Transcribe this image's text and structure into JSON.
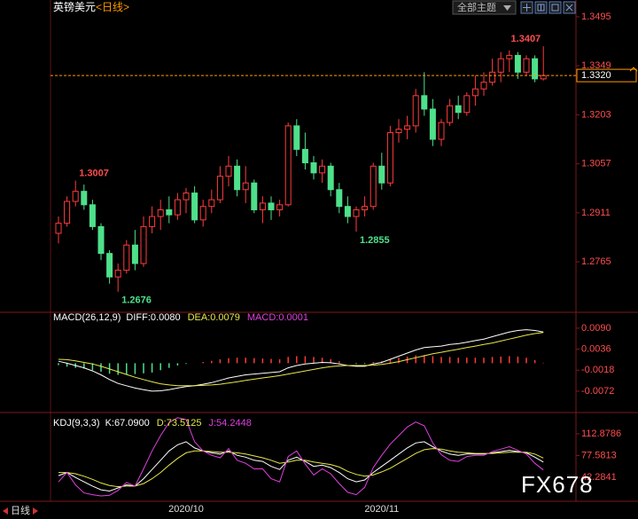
{
  "toolbar": {
    "theme_select": "全部主题"
  },
  "footer": {
    "period": "日线"
  },
  "watermark": "FX678",
  "chart_data": [
    {
      "type": "candlestick",
      "title": "英镑美元",
      "subtitle": "<日线>",
      "categories": [
        null,
        null,
        null,
        null,
        null,
        null,
        null,
        null,
        null,
        null,
        null,
        null,
        null,
        null,
        null,
        "2020/10",
        null,
        null,
        null,
        null,
        null,
        null,
        null,
        null,
        null,
        null,
        null,
        null,
        null,
        null,
        null,
        null,
        null,
        null,
        null,
        null,
        null,
        null,
        "2020/11",
        null,
        null,
        null,
        null,
        null,
        null,
        null,
        null,
        null,
        null,
        null,
        null,
        null,
        null,
        null,
        null,
        null,
        null,
        null
      ],
      "open": [
        1.285,
        1.288,
        1.2945,
        1.2975,
        1.2935,
        1.287,
        1.279,
        1.272,
        1.274,
        1.2815,
        1.276,
        1.287,
        1.29,
        1.292,
        1.2905,
        1.295,
        1.297,
        1.289,
        1.293,
        1.295,
        1.302,
        1.305,
        1.298,
        1.3,
        1.292,
        1.294,
        1.292,
        1.2935,
        1.317,
        1.31,
        1.306,
        1.303,
        1.305,
        1.298,
        1.293,
        1.29,
        1.292,
        1.293,
        1.305,
        1.3,
        1.315,
        1.316,
        1.317,
        1.326,
        1.322,
        1.313,
        1.318,
        1.323,
        1.321,
        1.326,
        1.328,
        1.33,
        1.333,
        1.337,
        1.338,
        1.333,
        1.337,
        1.331
      ],
      "high": [
        1.29,
        1.296,
        1.3007,
        1.2995,
        1.295,
        1.288,
        1.28,
        1.276,
        1.283,
        1.286,
        1.29,
        1.293,
        1.295,
        1.296,
        1.297,
        1.2985,
        1.299,
        1.295,
        1.298,
        1.305,
        1.308,
        1.307,
        1.305,
        1.301,
        1.296,
        1.296,
        1.295,
        1.318,
        1.319,
        1.315,
        1.308,
        1.307,
        1.306,
        1.3,
        1.296,
        1.293,
        1.296,
        1.306,
        1.309,
        1.317,
        1.319,
        1.32,
        1.328,
        1.333,
        1.325,
        1.319,
        1.325,
        1.326,
        1.327,
        1.332,
        1.333,
        1.337,
        1.339,
        1.3395,
        1.339,
        1.338,
        1.338,
        1.3407
      ],
      "low": [
        1.282,
        1.287,
        1.293,
        1.292,
        1.286,
        1.277,
        1.27,
        1.2676,
        1.273,
        1.274,
        1.275,
        1.285,
        1.286,
        1.288,
        1.289,
        1.291,
        1.288,
        1.287,
        1.291,
        1.294,
        1.299,
        1.296,
        1.294,
        1.291,
        1.288,
        1.289,
        1.29,
        1.293,
        1.308,
        1.304,
        1.301,
        1.3,
        1.296,
        1.291,
        1.288,
        1.2855,
        1.29,
        1.292,
        1.298,
        1.299,
        1.312,
        1.313,
        1.315,
        1.32,
        1.311,
        1.311,
        1.317,
        1.319,
        1.32,
        1.323,
        1.326,
        1.329,
        1.33,
        1.333,
        1.331,
        1.332,
        1.33,
        1.3305
      ],
      "close": [
        1.288,
        1.2945,
        1.2975,
        1.2935,
        1.287,
        1.279,
        1.272,
        1.274,
        1.2815,
        1.276,
        1.287,
        1.29,
        1.292,
        1.2905,
        1.295,
        1.297,
        1.289,
        1.293,
        1.295,
        1.302,
        1.305,
        1.298,
        1.3,
        1.292,
        1.294,
        1.292,
        1.2935,
        1.317,
        1.31,
        1.306,
        1.303,
        1.305,
        1.298,
        1.293,
        1.29,
        1.292,
        1.293,
        1.305,
        1.3,
        1.315,
        1.316,
        1.317,
        1.326,
        1.322,
        1.313,
        1.318,
        1.323,
        1.321,
        1.326,
        1.328,
        1.33,
        1.333,
        1.337,
        1.338,
        1.333,
        1.337,
        1.331,
        1.332
      ],
      "up_color": "#ff3b3b",
      "down_color": "#4ee08a",
      "ylim": [
        1.262,
        1.3537
      ],
      "yticks": [
        1.2765,
        1.2911,
        1.3057,
        1.3203,
        1.3349,
        1.3495
      ],
      "last_price": {
        "value": 1.332,
        "label": "1.3320"
      }
    },
    {
      "type": "macd",
      "title": "MACD(26,12,9)",
      "up_color": "#ff3b3b",
      "down_color": "#4ee08a",
      "series": [
        {
          "name": "DIFF:0.0080",
          "color": "#ffffff",
          "type": "line",
          "values": [
            0.0005,
            0.0,
            -0.0006,
            -0.0012,
            -0.002,
            -0.003,
            -0.0042,
            -0.0052,
            -0.0058,
            -0.0064,
            -0.0068,
            -0.0072,
            -0.0071,
            -0.0068,
            -0.0064,
            -0.006,
            -0.0058,
            -0.0054,
            -0.005,
            -0.0044,
            -0.0038,
            -0.0034,
            -0.003,
            -0.0028,
            -0.0026,
            -0.0024,
            -0.0022,
            -0.0012,
            -0.0006,
            -0.0002,
            0.0,
            0.0002,
            0.0001,
            -0.0002,
            -0.0006,
            -0.0008,
            -0.0008,
            -0.0002,
            0.0002,
            0.001,
            0.0018,
            0.0026,
            0.0034,
            0.004,
            0.0042,
            0.0044,
            0.0048,
            0.005,
            0.0054,
            0.0058,
            0.0062,
            0.0068,
            0.0074,
            0.008,
            0.0084,
            0.0086,
            0.0084,
            0.008
          ]
        },
        {
          "name": "DEA:0.0079",
          "color": "#e8e84a",
          "type": "line",
          "values": [
            0.001,
            0.0009,
            0.0006,
            0.0002,
            -0.0002,
            -0.0008,
            -0.0015,
            -0.0022,
            -0.0029,
            -0.0036,
            -0.0042,
            -0.0048,
            -0.0053,
            -0.0056,
            -0.0058,
            -0.0058,
            -0.0058,
            -0.0057,
            -0.0056,
            -0.0054,
            -0.0051,
            -0.0048,
            -0.0044,
            -0.0041,
            -0.0038,
            -0.0035,
            -0.0032,
            -0.0028,
            -0.0024,
            -0.002,
            -0.0016,
            -0.0012,
            -0.0009,
            -0.0007,
            -0.0006,
            -0.0006,
            -0.0006,
            -0.0005,
            -0.0003,
            0.0,
            0.0004,
            0.0009,
            0.0014,
            0.0019,
            0.0024,
            0.0028,
            0.0032,
            0.0036,
            0.004,
            0.0044,
            0.0048,
            0.0052,
            0.0057,
            0.0062,
            0.0067,
            0.0072,
            0.0076,
            0.0079
          ]
        },
        {
          "name": "MACD:0.0001",
          "color": "#e040e0",
          "type": "bar",
          "values": [
            -0.0005,
            -0.0009,
            -0.0012,
            -0.0014,
            -0.0018,
            -0.0022,
            -0.0027,
            -0.003,
            -0.0029,
            -0.0028,
            -0.0026,
            -0.0024,
            -0.0018,
            -0.0012,
            -0.0006,
            -0.0002,
            0.0,
            0.0003,
            0.0006,
            0.001,
            0.0013,
            0.0014,
            0.0014,
            0.0013,
            0.0012,
            0.0011,
            0.001,
            0.0016,
            0.0018,
            0.0018,
            0.0016,
            0.0014,
            0.001,
            0.0005,
            0.0,
            -0.0002,
            -0.0002,
            0.0003,
            0.0005,
            0.001,
            0.0014,
            0.0017,
            0.002,
            0.0021,
            0.0018,
            0.0016,
            0.0016,
            0.0014,
            0.0014,
            0.0014,
            0.0014,
            0.0016,
            0.0017,
            0.0018,
            0.0017,
            0.0014,
            0.0008,
            0.0001
          ]
        }
      ],
      "ylim": [
        -0.012,
        0.0108
      ],
      "yticks": [
        -0.0072,
        -0.0018,
        0.0036,
        {
          "value": 0.009,
          "label": "0.0090"
        }
      ]
    },
    {
      "type": "kdj",
      "title": "KDJ(9,3,3)",
      "series": [
        {
          "name": "K:67.0900",
          "color": "#ffffff",
          "type": "line",
          "values": [
            45,
            50,
            42,
            35,
            28,
            22,
            20,
            25,
            30,
            28,
            40,
            55,
            70,
            85,
            95,
            100,
            90,
            85,
            82,
            80,
            85,
            78,
            75,
            70,
            68,
            60,
            55,
            70,
            75,
            68,
            60,
            62,
            58,
            50,
            40,
            35,
            38,
            50,
            60,
            70,
            80,
            90,
            98,
            100,
            92,
            85,
            80,
            78,
            80,
            80,
            80,
            82,
            84,
            86,
            84,
            82,
            75,
            67.09
          ]
        },
        {
          "name": "D:73.5125",
          "color": "#e8e84a",
          "type": "line",
          "values": [
            50,
            50,
            48,
            44,
            39,
            33,
            29,
            27,
            28,
            28,
            32,
            40,
            50,
            62,
            73,
            82,
            85,
            85,
            84,
            83,
            83,
            82,
            80,
            77,
            74,
            70,
            65,
            67,
            70,
            70,
            67,
            65,
            63,
            59,
            52,
            47,
            44,
            46,
            51,
            57,
            65,
            73,
            81,
            87,
            89,
            88,
            85,
            83,
            82,
            81,
            81,
            81,
            82,
            83,
            83,
            83,
            80,
            73.5125
          ]
        },
        {
          "name": "J:54.2448",
          "color": "#e040e0",
          "type": "line",
          "values": [
            35,
            50,
            30,
            17,
            14,
            12,
            13,
            21,
            34,
            28,
            56,
            85,
            110,
            131,
            139,
            136,
            100,
            85,
            78,
            74,
            89,
            70,
            65,
            56,
            56,
            40,
            35,
            76,
            85,
            64,
            46,
            56,
            48,
            32,
            18,
            14,
            26,
            58,
            78,
            96,
            110,
            124,
            132,
            126,
            98,
            79,
            70,
            68,
            76,
            78,
            78,
            84,
            88,
            92,
            86,
            80,
            65,
            54.2448
          ]
        }
      ],
      "ylim": [
        10.6,
        140.2
      ],
      "yticks": [
        42.2841,
        77.5813,
        112.8786
      ]
    }
  ]
}
